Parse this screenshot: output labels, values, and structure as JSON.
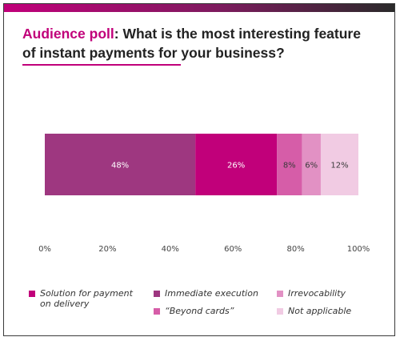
{
  "title": {
    "prefix": "Audience poll",
    "separator": ":",
    "text": "What is the most interesting feature of instant payments for your business?"
  },
  "chart_data": {
    "type": "bar",
    "orientation": "horizontal-stacked",
    "categories": [
      ""
    ],
    "xlim": [
      0,
      100
    ],
    "x_ticks": [
      "0%",
      "20%",
      "40%",
      "60%",
      "80%",
      "100%"
    ],
    "grid": false,
    "legend_position": "bottom",
    "segments_in_stack_order": [
      {
        "name": "Immediate execution",
        "value": 48,
        "label": "48%",
        "color": "#9e3780"
      },
      {
        "name": "Solution for payment on delivery",
        "value": 26,
        "label": "26%",
        "color": "#c1007a"
      },
      {
        "name": "“Beyond cards”",
        "value": 8,
        "label": "8%",
        "color": "#d65da8"
      },
      {
        "name": "Irrevocability",
        "value": 6,
        "label": "6%",
        "color": "#e291c4"
      },
      {
        "name": "Not applicable",
        "value": 12,
        "label": "12%",
        "color": "#f1cbe3"
      }
    ]
  },
  "legend": {
    "items": [
      {
        "label": "Solution for payment on delivery",
        "color": "#c1007a"
      },
      {
        "label": "Immediate execution",
        "color": "#9e3780"
      },
      {
        "label": "Irrevocability",
        "color": "#e291c4"
      },
      {
        "label": "“Beyond cards”",
        "color": "#d65da8"
      },
      {
        "label": "Not applicable",
        "color": "#f1cbe3"
      }
    ]
  },
  "colors": {
    "accent": "#c1007a",
    "frame": "#3a3a3a",
    "text": "#222222"
  }
}
